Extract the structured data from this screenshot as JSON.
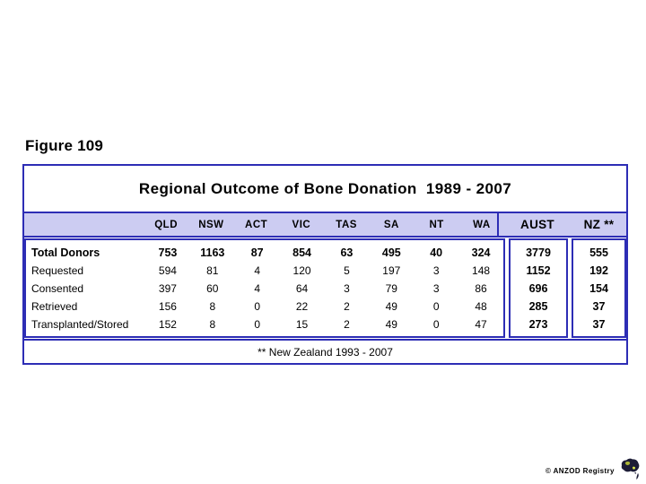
{
  "figure_label": "Figure 109",
  "table": {
    "title": "Regional Outcome of Bone Donation  1989 - 2007",
    "columns": [
      "QLD",
      "NSW",
      "ACT",
      "VIC",
      "TAS",
      "SA",
      "NT",
      "WA"
    ],
    "summary_columns": {
      "aust": "AUST",
      "nz": "NZ **"
    },
    "rows": [
      {
        "label": "Total Donors",
        "values": [
          753,
          1163,
          87,
          854,
          63,
          495,
          40,
          324
        ],
        "aust": 3779,
        "nz": 555,
        "bold": true
      },
      {
        "label": "Requested",
        "values": [
          594,
          81,
          4,
          120,
          5,
          197,
          3,
          148
        ],
        "aust": 1152,
        "nz": 192,
        "bold": false
      },
      {
        "label": "Consented",
        "values": [
          397,
          60,
          4,
          64,
          3,
          79,
          3,
          86
        ],
        "aust": 696,
        "nz": 154,
        "bold": false
      },
      {
        "label": "Retrieved",
        "values": [
          156,
          8,
          0,
          22,
          2,
          49,
          0,
          48
        ],
        "aust": 285,
        "nz": 37,
        "bold": false
      },
      {
        "label": "Transplanted/Stored",
        "values": [
          152,
          8,
          0,
          15,
          2,
          49,
          0,
          47
        ],
        "aust": 273,
        "nz": 37,
        "bold": false
      }
    ],
    "footnote": "** New Zealand 1993 - 2007"
  },
  "footer": {
    "credit": "© ANZOD Registry",
    "logo": "anzod-australia-map-logo"
  },
  "colors": {
    "border": "#2d2db5",
    "header_bg": "#ccccf2",
    "text": "#000000"
  },
  "chart_data": {
    "type": "table",
    "title": "Regional Outcome of Bone Donation 1989 - 2007",
    "categories": [
      "QLD",
      "NSW",
      "ACT",
      "VIC",
      "TAS",
      "SA",
      "NT",
      "WA",
      "AUST",
      "NZ **"
    ],
    "series": [
      {
        "name": "Total Donors",
        "values": [
          753,
          1163,
          87,
          854,
          63,
          495,
          40,
          324,
          3779,
          555
        ]
      },
      {
        "name": "Requested",
        "values": [
          594,
          81,
          4,
          120,
          5,
          197,
          3,
          148,
          1152,
          192
        ]
      },
      {
        "name": "Consented",
        "values": [
          397,
          60,
          4,
          64,
          3,
          79,
          3,
          86,
          696,
          154
        ]
      },
      {
        "name": "Retrieved",
        "values": [
          156,
          8,
          0,
          22,
          2,
          49,
          0,
          48,
          285,
          37
        ]
      },
      {
        "name": "Transplanted/Stored",
        "values": [
          152,
          8,
          0,
          15,
          2,
          49,
          0,
          47,
          273,
          37
        ]
      }
    ],
    "annotations": [
      "** New Zealand 1993 - 2007"
    ]
  }
}
